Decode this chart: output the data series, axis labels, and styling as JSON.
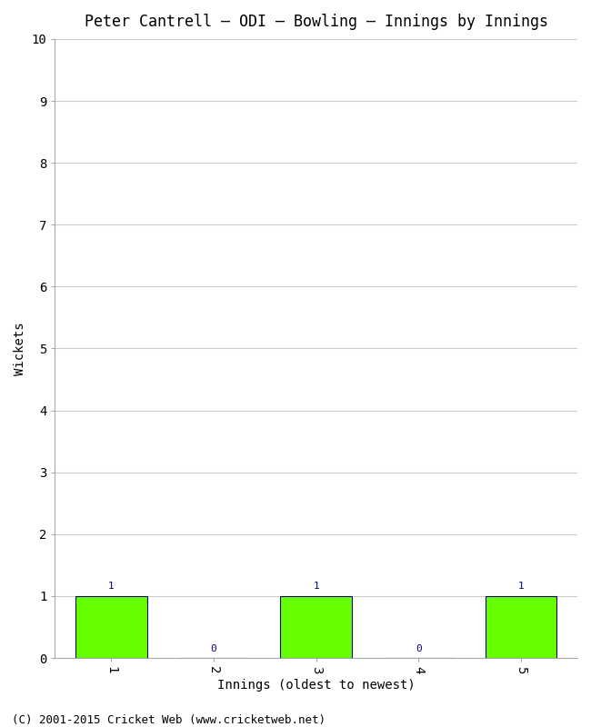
{
  "title": "Peter Cantrell – ODI – Bowling – Innings by Innings",
  "xlabel": "Innings (oldest to newest)",
  "ylabel": "Wickets",
  "categories": [
    "1",
    "2",
    "3",
    "4",
    "5"
  ],
  "values": [
    1,
    0,
    1,
    0,
    1
  ],
  "bar_color": "#66ff00",
  "bar_edge_color": "#000080",
  "ylim": [
    0,
    10
  ],
  "yticks": [
    0,
    1,
    2,
    3,
    4,
    5,
    6,
    7,
    8,
    9,
    10
  ],
  "background_color": "#ffffff",
  "plot_bg_color": "#ffffff",
  "grid_color": "#cccccc",
  "footer": "(C) 2001-2015 Cricket Web (www.cricketweb.net)",
  "title_fontsize": 12,
  "axis_label_fontsize": 10,
  "tick_fontsize": 10,
  "annotation_fontsize": 8,
  "footer_fontsize": 9
}
